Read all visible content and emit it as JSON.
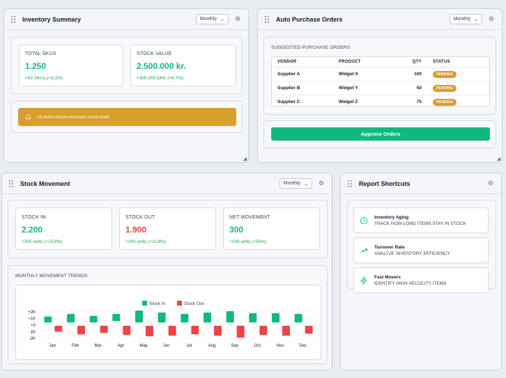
{
  "inventory_summary": {
    "title": "Inventory Summary",
    "period": "Monthly",
    "total_skus": {
      "label": "TOTAL SKUS",
      "value": "1.250",
      "change": "+62 SKUs (+5.2%)"
    },
    "stock_value": {
      "label": "STOCK VALUE",
      "value": "2.500.000 kr.",
      "change": "+300,000 DKK (+6.7%)"
    },
    "alert_text": "15 items below minimum stock level"
  },
  "auto_purchase": {
    "title": "Auto Purchase Orders",
    "period": "Monthly",
    "section_label": "SUGGESTED PURCHASE ORDERS",
    "columns": [
      "VENDOR",
      "PRODUCT",
      "QTY",
      "STATUS"
    ],
    "rows": [
      {
        "vendor": "Supplier A",
        "product": "Widget X",
        "qty": "100",
        "status": "PENDING"
      },
      {
        "vendor": "Supplier B",
        "product": "Widget Y",
        "qty": "50",
        "status": "PENDING"
      },
      {
        "vendor": "Supplier C",
        "product": "Widget Z",
        "qty": "75",
        "status": "PENDING"
      }
    ],
    "approve_label": "Approve Orders"
  },
  "stock_movement": {
    "title": "Stock Movement",
    "period": "Monthly",
    "stock_in": {
      "label": "STOCK IN",
      "value": "2.200",
      "change": "+300 units (+15.8%)"
    },
    "stock_out": {
      "label": "STOCK OUT",
      "value": "1.900",
      "change": "+200 units (+11.8%)"
    },
    "net": {
      "label": "NET MOVEMENT",
      "value": "300",
      "change": "+100 units (+50%)"
    },
    "trend_label": "MONTHLY MOVEMENT TRENDS"
  },
  "report_shortcuts": {
    "title": "Report Shortcuts",
    "items": [
      {
        "icon": "clock-icon",
        "title": "Inventory Aging",
        "desc": "Track how long items stay in stock"
      },
      {
        "icon": "trending-up-icon",
        "title": "Turnover Rate",
        "desc": "Analyze inventory efficiency"
      },
      {
        "icon": "lightning-icon",
        "title": "Fast Movers",
        "desc": "Identify high-velocity items"
      }
    ]
  },
  "colors": {
    "green": "#10b981",
    "red": "#ef4444",
    "amber": "#d99e2b"
  },
  "chart_data": {
    "type": "bar",
    "categories": [
      "Jan",
      "Feb",
      "Mar",
      "Apr",
      "May",
      "Jun",
      "Jul",
      "Aug",
      "Sep",
      "Oct",
      "Nov",
      "Dec"
    ],
    "yticks": [
      "+2K",
      "+1K",
      "+0",
      "-1K",
      "-2K"
    ],
    "ylim": [
      -2000,
      2000
    ],
    "series": [
      {
        "name": "Stock In",
        "color": "#10b981",
        "ranges": [
          [
            400,
            1300
          ],
          [
            400,
            1700
          ],
          [
            400,
            1400
          ],
          [
            600,
            1700
          ],
          [
            400,
            2200
          ],
          [
            400,
            1900
          ],
          [
            400,
            1700
          ],
          [
            400,
            1900
          ],
          [
            400,
            2100
          ],
          [
            400,
            1800
          ],
          [
            400,
            1800
          ],
          [
            400,
            1700
          ]
        ]
      },
      {
        "name": "Stock Out",
        "color": "#ef4444",
        "ranges": [
          [
            -1000,
            -100
          ],
          [
            -1400,
            -100
          ],
          [
            -1200,
            -100
          ],
          [
            -1500,
            -100
          ],
          [
            -1700,
            -100
          ],
          [
            -1600,
            -100
          ],
          [
            -1400,
            -100
          ],
          [
            -1600,
            -100
          ],
          [
            -1900,
            -100
          ],
          [
            -1500,
            -100
          ],
          [
            -1600,
            -100
          ],
          [
            -1300,
            -100
          ]
        ]
      }
    ]
  }
}
